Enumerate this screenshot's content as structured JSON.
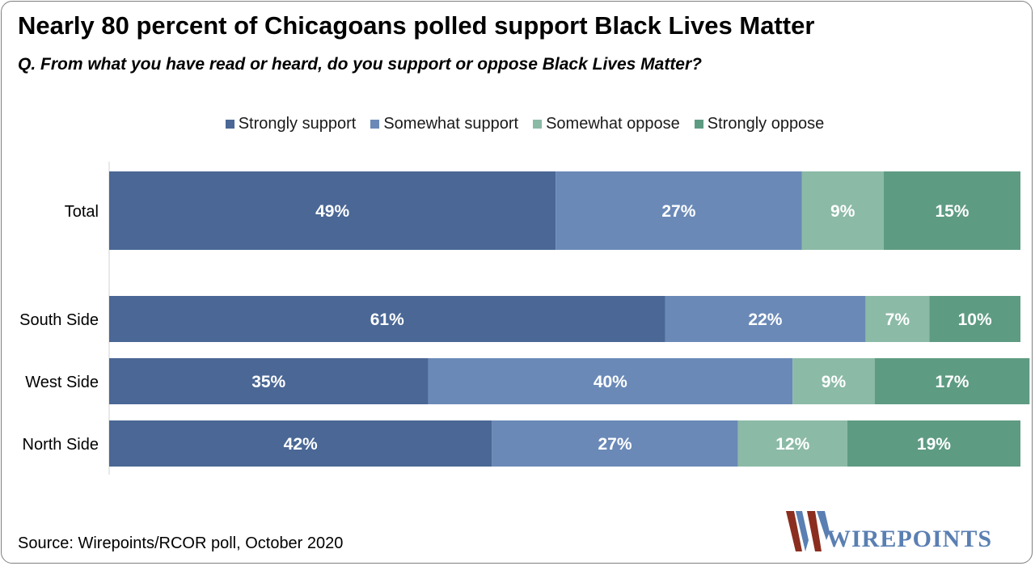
{
  "title": "Nearly 80 percent of Chicagoans polled support Black Lives Matter",
  "subtitle": "Q. From what you have read or heard, do you support or oppose Black Lives Matter?",
  "source": "Source: Wirepoints/RCOR poll, October 2020",
  "logo_text": "WIREPOINTS",
  "colors": {
    "strongly_support": "#4a6795",
    "somewhat_support": "#6a89b7",
    "somewhat_oppose": "#8bbaa6",
    "strongly_oppose": "#5e9b83",
    "label": "#ffffff",
    "axis": "#d0d0d0",
    "logo_red": "#8b2e1f",
    "logo_blue": "#5a7fb2"
  },
  "chart_data": {
    "type": "bar",
    "orientation": "horizontal",
    "stacked": true,
    "categories": [
      "Total",
      "South Side",
      "West Side",
      "North Side"
    ],
    "series": [
      {
        "name": "Strongly support",
        "values": [
          49,
          61,
          35,
          42
        ],
        "labels": [
          "49%",
          "61%",
          "35%",
          "42%"
        ]
      },
      {
        "name": "Somewhat support",
        "values": [
          27,
          22,
          40,
          27
        ],
        "labels": [
          "27%",
          "22%",
          "40%",
          "27%"
        ]
      },
      {
        "name": "Somewhat oppose",
        "values": [
          9,
          7,
          9,
          12
        ],
        "labels": [
          "9%",
          "7%",
          "9%",
          "12%"
        ]
      },
      {
        "name": "Strongly oppose",
        "values": [
          15,
          10,
          17,
          19
        ],
        "labels": [
          "15%",
          "10%",
          "17%",
          "19%"
        ]
      }
    ],
    "xlim": [
      0,
      100
    ],
    "legend": "top-center",
    "grid": false
  }
}
